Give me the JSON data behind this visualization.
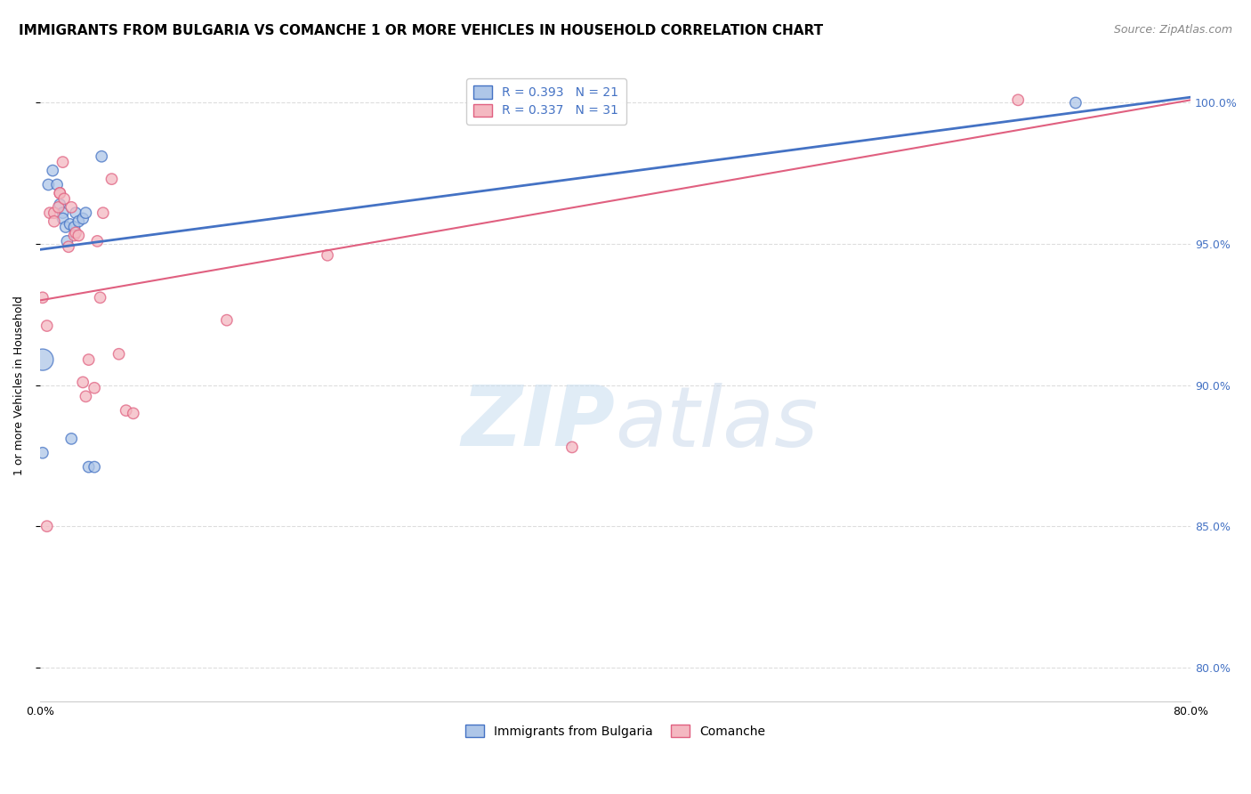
{
  "title": "IMMIGRANTS FROM BULGARIA VS COMANCHE 1 OR MORE VEHICLES IN HOUSEHOLD CORRELATION CHART",
  "source": "Source: ZipAtlas.com",
  "ylabel": "1 or more Vehicles in Household",
  "ytick_labels": [
    "80.0%",
    "85.0%",
    "90.0%",
    "95.0%",
    "100.0%"
  ],
  "ytick_values": [
    0.8,
    0.85,
    0.9,
    0.95,
    1.0
  ],
  "xlim": [
    0.0,
    0.8
  ],
  "ylim": [
    0.788,
    1.012
  ],
  "legend_blue_label": "R = 0.393   N = 21",
  "legend_pink_label": "R = 0.337   N = 31",
  "legend_bottom_blue": "Immigrants from Bulgaria",
  "legend_bottom_pink": "Comanche",
  "blue_color": "#aec6e8",
  "blue_line_color": "#4472C4",
  "pink_color": "#f4b8c1",
  "pink_line_color": "#e06080",
  "blue_scatter_x": [
    0.002,
    0.006,
    0.009,
    0.012,
    0.014,
    0.016,
    0.016,
    0.018,
    0.019,
    0.021,
    0.022,
    0.024,
    0.025,
    0.027,
    0.03,
    0.032,
    0.034,
    0.038,
    0.043,
    0.002,
    0.72
  ],
  "blue_scatter_y": [
    0.876,
    0.971,
    0.976,
    0.971,
    0.964,
    0.961,
    0.959,
    0.956,
    0.951,
    0.957,
    0.881,
    0.956,
    0.961,
    0.958,
    0.959,
    0.961,
    0.871,
    0.871,
    0.981,
    0.909,
    1.0
  ],
  "blue_scatter_sizes": [
    80,
    80,
    80,
    80,
    80,
    80,
    80,
    80,
    80,
    80,
    80,
    80,
    80,
    80,
    80,
    80,
    80,
    80,
    80,
    300,
    80
  ],
  "pink_scatter_x": [
    0.002,
    0.005,
    0.007,
    0.01,
    0.01,
    0.013,
    0.014,
    0.014,
    0.016,
    0.017,
    0.02,
    0.022,
    0.024,
    0.025,
    0.027,
    0.03,
    0.032,
    0.034,
    0.038,
    0.04,
    0.042,
    0.044,
    0.05,
    0.055,
    0.06,
    0.065,
    0.13,
    0.2,
    0.37,
    0.68,
    0.005
  ],
  "pink_scatter_y": [
    0.931,
    0.921,
    0.961,
    0.961,
    0.958,
    0.963,
    0.968,
    0.968,
    0.979,
    0.966,
    0.949,
    0.963,
    0.953,
    0.954,
    0.953,
    0.901,
    0.896,
    0.909,
    0.899,
    0.951,
    0.931,
    0.961,
    0.973,
    0.911,
    0.891,
    0.89,
    0.923,
    0.946,
    0.878,
    1.001,
    0.85
  ],
  "pink_scatter_sizes": [
    80,
    80,
    80,
    80,
    80,
    80,
    80,
    80,
    80,
    80,
    80,
    80,
    80,
    80,
    80,
    80,
    80,
    80,
    80,
    80,
    80,
    80,
    80,
    80,
    80,
    80,
    80,
    80,
    80,
    80,
    80
  ],
  "blue_line_x0": 0.0,
  "blue_line_y0": 0.948,
  "blue_line_x1": 0.8,
  "blue_line_y1": 1.002,
  "pink_line_x0": 0.0,
  "pink_line_y0": 0.93,
  "pink_line_x1": 0.8,
  "pink_line_y1": 1.001,
  "watermark_zip": "ZIP",
  "watermark_atlas": "atlas",
  "grid_color": "#dddddd",
  "background_color": "#ffffff",
  "title_fontsize": 11,
  "source_fontsize": 9,
  "axis_label_fontsize": 9,
  "tick_fontsize": 9
}
